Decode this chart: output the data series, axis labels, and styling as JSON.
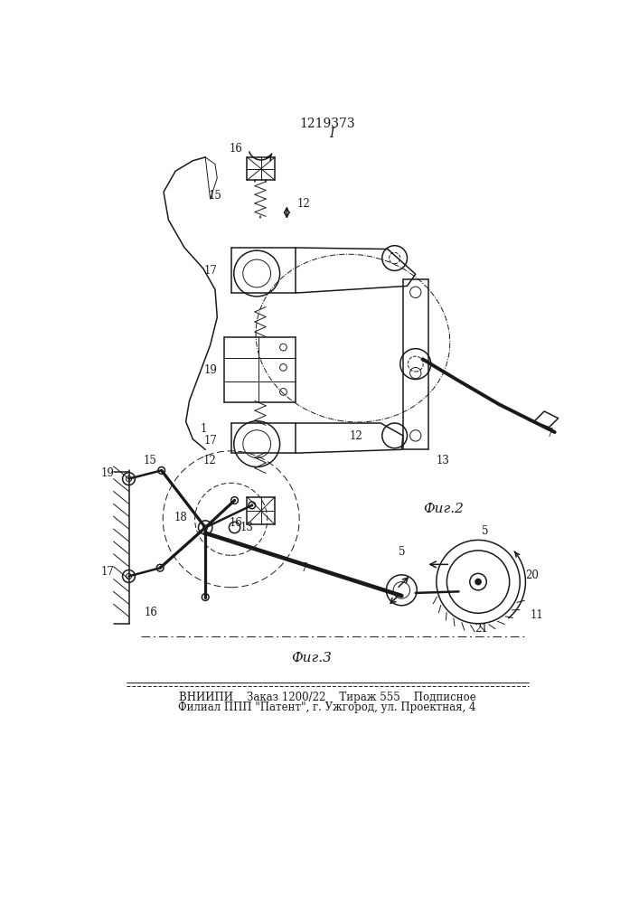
{
  "title": "1219373",
  "fig2_label": "Фиг.2",
  "fig3_label": "Фиг.3",
  "footer_line1": "ВНИИПИ    Заказ 1200/22    Тираж 555    Подписное",
  "footer_line2": "Филиал ППП \"Патент\", г. Ужгород, ул. Проектная, 4",
  "bg_color": "#ffffff",
  "line_color": "#1a1a1a"
}
